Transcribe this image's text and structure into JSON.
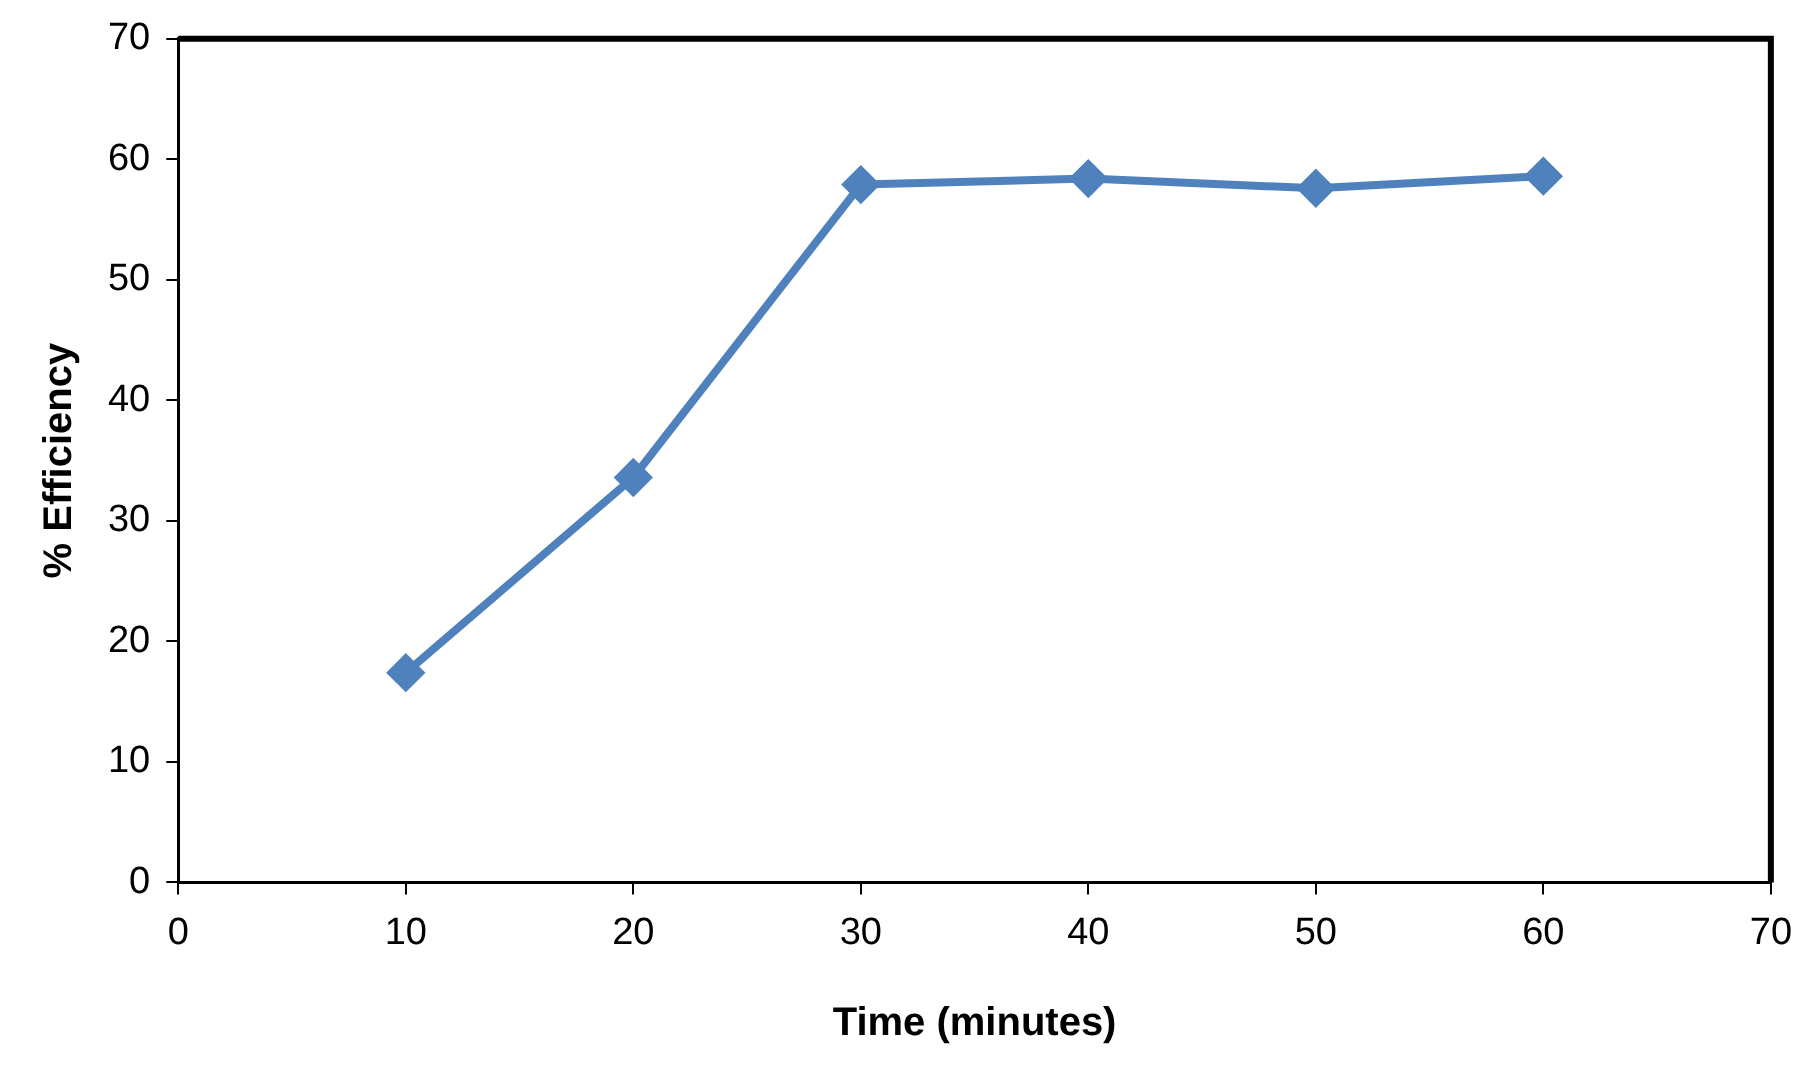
{
  "chart_data": {
    "type": "line",
    "xlabel": "Time (minutes)",
    "ylabel": "% Efficiency",
    "x": [
      10,
      20,
      30,
      40,
      50,
      60
    ],
    "series": [
      {
        "color": "#4f81bd",
        "values": [
          17.4,
          33.6,
          57.9,
          58.4,
          57.6,
          58.6
        ]
      }
    ],
    "xlim": [
      0,
      70
    ],
    "xticks": [
      0,
      10,
      20,
      30,
      40,
      50,
      60,
      70
    ],
    "ylim": [
      0,
      70
    ],
    "yticks": [
      0,
      10,
      20,
      30,
      40,
      50,
      60,
      70
    ],
    "grid": false,
    "legend": false,
    "marker": "diamond",
    "line_style": "solid"
  }
}
